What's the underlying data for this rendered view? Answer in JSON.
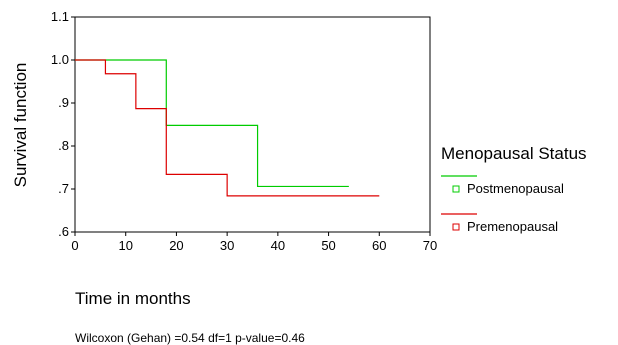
{
  "chart_data": {
    "type": "line",
    "step": true,
    "xlabel": "Time in months",
    "ylabel": "Survival function",
    "xlim": [
      0,
      70
    ],
    "ylim": [
      0.6,
      1.1
    ],
    "x_ticks": [
      0,
      10,
      20,
      30,
      40,
      50,
      60,
      70
    ],
    "x_tick_labels": [
      "0",
      "10",
      "20",
      "30",
      "40",
      "50",
      "60",
      "70"
    ],
    "y_ticks": [
      0.6,
      0.7,
      0.8,
      0.9,
      1.0,
      1.1
    ],
    "y_tick_labels": [
      ".6",
      ".7",
      ".8",
      ".9",
      "1.0",
      "1.1"
    ],
    "grid": false,
    "legend_title": "Menopausal Status",
    "legend_position": "right",
    "series": [
      {
        "name": "Postmenopausal",
        "color": "#00cc00",
        "x": [
          0,
          12,
          18,
          36,
          54
        ],
        "y": [
          1.0,
          1.0,
          0.848,
          0.706,
          0.706
        ]
      },
      {
        "name": "Premenopausal",
        "color": "#dd0000",
        "x": [
          0,
          6,
          12,
          18,
          30,
          60
        ],
        "y": [
          1.0,
          0.968,
          0.887,
          0.734,
          0.684,
          0.684
        ]
      }
    ],
    "annotation": "Wilcoxon (Gehan) =0.54 df=1 p-value=0.46"
  }
}
